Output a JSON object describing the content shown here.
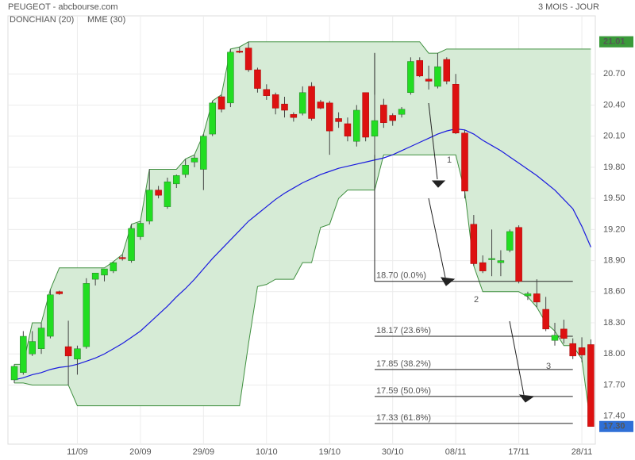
{
  "chart_data": {
    "type": "candlestick",
    "title": "PEUGEOT - abcbourse.com",
    "period": "3 MOIS - JOUR",
    "categories": [
      null,
      null,
      null,
      null,
      null,
      null,
      null,
      "11/09",
      null,
      null,
      null,
      null,
      null,
      null,
      "20/09",
      null,
      null,
      null,
      null,
      null,
      null,
      "29/09",
      null,
      null,
      null,
      null,
      null,
      null,
      "10/10",
      null,
      null,
      null,
      null,
      null,
      null,
      "19/10",
      null,
      null,
      null,
      null,
      null,
      null,
      "30/10",
      null,
      null,
      null,
      null,
      null,
      null,
      "08/11",
      null,
      null,
      null,
      null,
      null,
      null,
      "17/11",
      null,
      null,
      null,
      null,
      null,
      null,
      "28/11",
      null
    ],
    "open": [
      17.75,
      17.82,
      18.0,
      18.05,
      18.17,
      18.6,
      18.07,
      17.95,
      18.07,
      18.72,
      18.76,
      18.8,
      18.93,
      18.9,
      19.13,
      19.28,
      19.58,
      19.42,
      19.64,
      19.73,
      19.85,
      19.78,
      20.12,
      20.48,
      20.42,
      20.92,
      20.95,
      20.74,
      20.55,
      20.5,
      20.41,
      20.31,
      20.32,
      20.58,
      20.43,
      20.42,
      20.27,
      20.22,
      20.05,
      20.52,
      20.1,
      20.4,
      20.3,
      20.31,
      20.52,
      20.83,
      20.65,
      20.58,
      20.84,
      20.6,
      20.13,
      19.25,
      18.88,
      18.92,
      18.88,
      19.0,
      19.22,
      18.56,
      18.58,
      18.43,
      18.13,
      18.24,
      18.1,
      18.06,
      18.09
    ],
    "high": [
      17.9,
      18.22,
      18.22,
      18.3,
      18.62,
      18.61,
      18.32,
      18.08,
      18.73,
      18.78,
      18.82,
      18.89,
      18.96,
      19.25,
      19.28,
      19.78,
      19.62,
      19.7,
      19.73,
      19.88,
      19.92,
      20.12,
      20.44,
      20.5,
      20.94,
      20.96,
      21.01,
      20.76,
      20.6,
      20.52,
      20.48,
      20.33,
      20.58,
      20.62,
      20.45,
      20.44,
      20.33,
      20.28,
      20.4,
      20.52,
      20.5,
      20.46,
      20.32,
      20.38,
      20.86,
      20.86,
      20.78,
      20.9,
      20.86,
      20.7,
      20.16,
      19.34,
      18.95,
      19.2,
      19.0,
      19.2,
      19.24,
      18.6,
      18.72,
      18.55,
      18.3,
      18.33,
      18.15,
      18.16,
      18.14
    ],
    "low": [
      17.72,
      17.8,
      17.98,
      18.0,
      18.15,
      18.57,
      17.7,
      17.8,
      18.05,
      18.66,
      18.7,
      18.78,
      18.9,
      18.88,
      19.1,
      19.25,
      19.5,
      19.4,
      19.6,
      19.7,
      19.8,
      19.58,
      20.1,
      20.33,
      20.38,
      20.9,
      20.72,
      20.52,
      20.45,
      20.31,
      20.28,
      20.24,
      20.3,
      20.25,
      20.36,
      19.92,
      20.18,
      20.05,
      20.0,
      20.05,
      19.92,
      20.18,
      20.2,
      20.28,
      20.5,
      20.67,
      20.55,
      20.56,
      20.6,
      20.12,
      19.5,
      18.85,
      18.78,
      18.75,
      18.75,
      18.98,
      18.68,
      18.52,
      18.45,
      18.22,
      18.08,
      18.1,
      17.95,
      17.92,
      17.3
    ],
    "close": [
      17.88,
      18.17,
      18.12,
      18.25,
      18.57,
      18.58,
      17.98,
      18.05,
      18.68,
      18.78,
      18.82,
      18.88,
      18.92,
      19.21,
      19.26,
      19.58,
      19.53,
      19.66,
      19.72,
      19.82,
      19.89,
      20.1,
      20.42,
      20.36,
      20.91,
      20.91,
      20.74,
      20.56,
      20.49,
      20.37,
      20.35,
      20.28,
      20.52,
      20.27,
      20.37,
      20.15,
      20.24,
      20.1,
      20.35,
      20.09,
      20.25,
      20.23,
      20.25,
      20.36,
      20.82,
      20.68,
      20.63,
      20.77,
      20.63,
      20.13,
      19.57,
      18.87,
      18.8,
      18.92,
      18.9,
      19.18,
      18.7,
      18.58,
      18.5,
      18.24,
      18.18,
      18.15,
      17.98,
      17.99,
      17.3
    ],
    "up_color": "#22dd22",
    "down_color": "#dd1111",
    "donchian": {
      "name": "DONCHIAN (20)",
      "color": "#3f8f3f",
      "fill": "#d6ebd6",
      "upper": [
        17.9,
        17.9,
        18.3,
        18.3,
        18.62,
        18.83,
        18.83,
        18.83,
        18.83,
        18.83,
        18.83,
        18.89,
        18.96,
        19.25,
        19.28,
        19.78,
        19.78,
        19.78,
        19.78,
        19.88,
        19.92,
        20.12,
        20.44,
        20.5,
        20.94,
        20.96,
        21.01,
        21.01,
        21.01,
        21.01,
        21.01,
        21.01,
        21.01,
        21.01,
        21.01,
        21.01,
        21.01,
        21.01,
        21.01,
        21.01,
        21.01,
        21.01,
        21.01,
        21.01,
        21.01,
        21.01,
        20.9,
        20.9,
        20.94,
        20.94,
        20.94,
        20.94,
        20.94,
        20.94,
        20.94,
        20.94,
        20.94,
        20.94,
        20.94,
        20.94,
        20.94,
        20.94,
        20.94,
        20.94,
        20.94
      ],
      "lower": [
        17.72,
        17.72,
        17.7,
        17.7,
        17.7,
        17.7,
        17.7,
        17.5,
        17.5,
        17.5,
        17.5,
        17.5,
        17.5,
        17.5,
        17.5,
        17.5,
        17.5,
        17.5,
        17.5,
        17.5,
        17.5,
        17.5,
        17.5,
        17.5,
        17.5,
        17.5,
        18.1,
        18.65,
        18.67,
        18.72,
        18.72,
        18.72,
        18.88,
        18.88,
        19.22,
        19.25,
        19.5,
        19.58,
        19.58,
        19.58,
        19.58,
        19.92,
        19.92,
        19.92,
        19.92,
        19.92,
        19.92,
        19.92,
        19.92,
        19.92,
        19.57,
        18.85,
        18.6,
        18.6,
        18.6,
        18.6,
        18.6,
        18.55,
        18.45,
        18.3,
        18.22,
        18.08,
        18.08,
        17.95,
        17.3
      ]
    },
    "mme": {
      "name": "MME (30)",
      "color": "#1a1adf",
      "values": [
        17.75,
        17.77,
        17.8,
        17.82,
        17.85,
        17.87,
        17.88,
        17.9,
        17.93,
        17.96,
        18.0,
        18.05,
        18.1,
        18.16,
        18.22,
        18.3,
        18.38,
        18.46,
        18.55,
        18.63,
        18.72,
        18.82,
        18.92,
        19.01,
        19.1,
        19.19,
        19.28,
        19.35,
        19.42,
        19.49,
        19.55,
        19.6,
        19.65,
        19.69,
        19.73,
        19.76,
        19.79,
        19.81,
        19.83,
        19.85,
        19.87,
        19.89,
        19.92,
        19.96,
        20.0,
        20.04,
        20.08,
        20.12,
        20.15,
        20.17,
        20.16,
        20.12,
        20.06,
        20.01,
        19.96,
        19.9,
        19.84,
        19.78,
        19.72,
        19.65,
        19.58,
        19.49,
        19.4,
        19.23,
        19.03
      ]
    },
    "fibonacci": [
      {
        "value": 18.7,
        "label": "18.70  (0.0%)"
      },
      {
        "value": 18.17,
        "label": "18.17  (23.6%)"
      },
      {
        "value": 17.85,
        "label": "17.85  (38.2%)"
      },
      {
        "value": 17.59,
        "label": "17.59  (50.0%)"
      },
      {
        "value": 17.33,
        "label": "17.33  (61.8%)"
      }
    ],
    "annotations": [
      "1",
      "2",
      "3"
    ],
    "price_markers": [
      {
        "value": 21.01,
        "color": "#3a9a3a"
      },
      {
        "value": 17.3,
        "label": "17.30",
        "color": "#2f6fd6"
      }
    ],
    "ylim": [
      17.13,
      21.26
    ],
    "yticks": [
      {
        "value": 20.7,
        "label": "20.70"
      },
      {
        "value": 20.4,
        "label": "20.40"
      },
      {
        "value": 20.1,
        "label": "20.10"
      },
      {
        "value": 19.8,
        "label": "19.80"
      },
      {
        "value": 19.5,
        "label": "19.50"
      },
      {
        "value": 19.2,
        "label": "19.20"
      },
      {
        "value": 18.9,
        "label": "18.90"
      },
      {
        "value": 18.6,
        "label": "18.60"
      },
      {
        "value": 18.3,
        "label": "18.30"
      },
      {
        "value": 18.0,
        "label": "18.00"
      },
      {
        "value": 17.7,
        "label": "17.70"
      },
      {
        "value": 17.4,
        "label": "17.40"
      }
    ],
    "grid": true
  }
}
